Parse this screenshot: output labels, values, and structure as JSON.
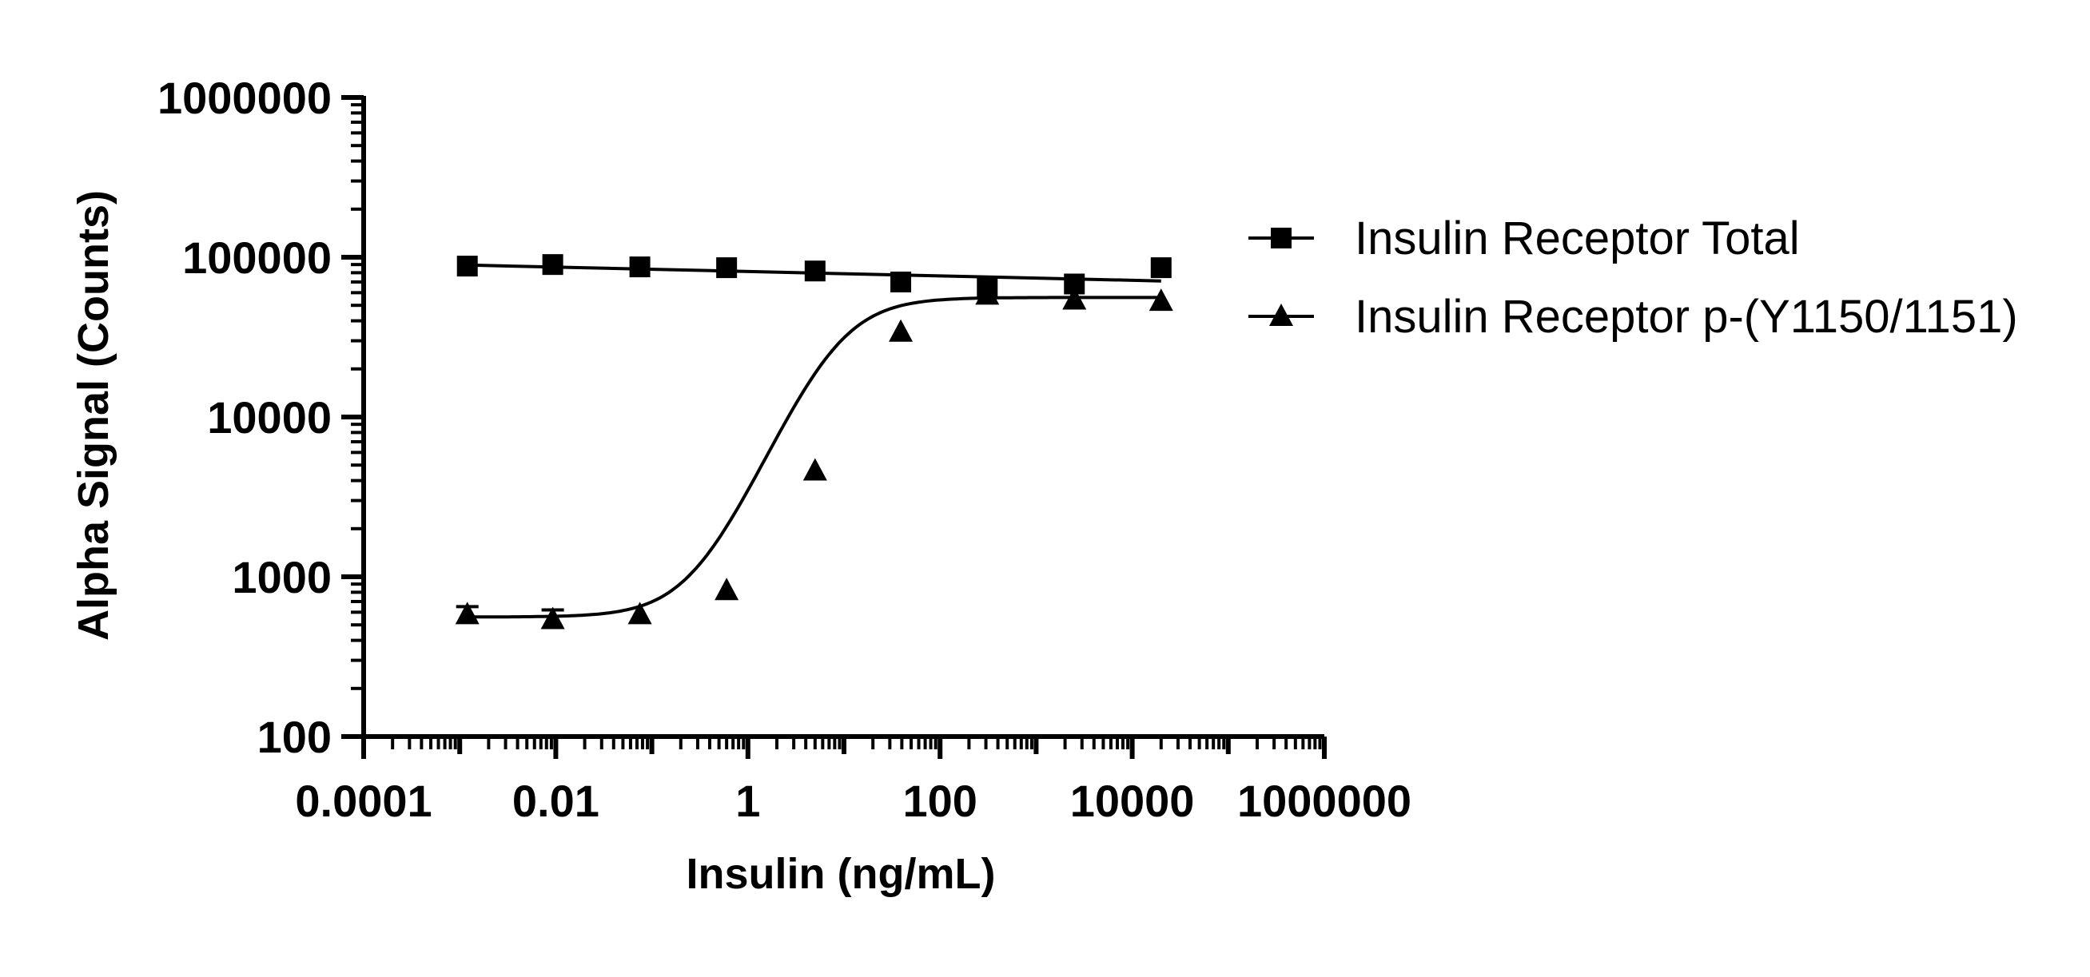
{
  "chart_data": {
    "type": "scatter",
    "title": "",
    "xlabel": "Insulin (ng/mL)",
    "ylabel": "Alpha Signal (Counts)",
    "xscale": "log",
    "yscale": "log",
    "xlim": [
      0.0001,
      1000000
    ],
    "ylim": [
      100,
      1000000
    ],
    "xticks": [
      "0.0001",
      "0.01",
      "1",
      "100",
      "10000",
      "1000000"
    ],
    "yticks": [
      "100",
      "1000",
      "10000",
      "100000",
      "1000000"
    ],
    "legend": "right",
    "grid": false,
    "x": [
      0.0012,
      0.0093,
      0.075,
      0.6,
      5.0,
      39,
      310,
      2500,
      20000
    ],
    "series": [
      {
        "name": "Insulin Receptor Total",
        "marker": "square",
        "color": "#000000",
        "values": [
          88000,
          90000,
          87000,
          86000,
          82000,
          70000,
          65000,
          68000,
          86000
        ]
      },
      {
        "name": "Insulin Receptor p-(Y1150/1151)",
        "marker": "triangle",
        "color": "#000000",
        "values": [
          580,
          540,
          580,
          820,
          4600,
          34000,
          58000,
          54000,
          53000
        ],
        "error": [
          70,
          80,
          0,
          0,
          0,
          0,
          0,
          0,
          0
        ]
      }
    ]
  }
}
